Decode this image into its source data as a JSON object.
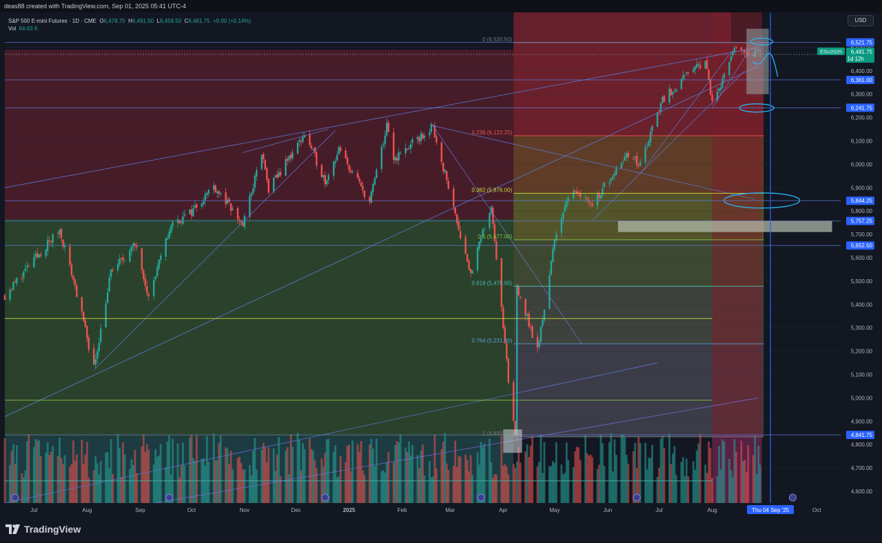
{
  "header": {
    "caption": "deas88 created with TradingView.com, Sep 01, 2025 05:41 UTC-4"
  },
  "legend": {
    "symbol": "S&P 500 E-mini Futures · 1D · CME",
    "open_label": "O",
    "open": "6,478.75",
    "high_label": "H",
    "high": "6,491.50",
    "low_label": "L",
    "low": "6,459.50",
    "close_label": "C",
    "close": "6,481.75",
    "change": "+9.00 (+0.14%)",
    "vol_label": "Vol",
    "vol": "64.63 K"
  },
  "currency_button": "USD",
  "brand": "TradingView",
  "colors": {
    "background": "#131722",
    "up": "#26a69a",
    "down": "#ef5350",
    "line": "#5b7bd6",
    "price_tag": "#2962ff",
    "annotation": "#29b6f6"
  },
  "chart_data": {
    "type": "candlestick",
    "title": "S&P 500 E-mini Futures",
    "interval": "1D",
    "exchange": "CME",
    "ylim": [
      4550,
      6650
    ],
    "y_ticks": [
      "6,600.00",
      "6,500.00",
      "6,400.00",
      "6,300.00",
      "6,200.00",
      "6,100.00",
      "6,000.00",
      "5,900.00",
      "5,800.00",
      "5,700.00",
      "5,600.00",
      "5,500.00",
      "5,400.00",
      "5,300.00",
      "5,200.00",
      "5,100.00",
      "5,000.00",
      "4,900.00",
      "4,800.00",
      "4,700.00",
      "4,600.00"
    ],
    "y_tick_values": [
      6600,
      6500,
      6400,
      6300,
      6200,
      6100,
      6000,
      5900,
      5800,
      5700,
      5600,
      5500,
      5400,
      5300,
      5200,
      5100,
      5000,
      4900,
      4800,
      4700,
      4600
    ],
    "x_ticks": [
      "Jul",
      "Aug",
      "Sep",
      "Oct",
      "Nov",
      "Dec",
      "2025",
      "Feb",
      "Mar",
      "Apr",
      "May",
      "Jun",
      "Jul",
      "Aug",
      "Sep",
      "Oct"
    ],
    "x_tick_dates": [
      "2024-07-01",
      "2024-08-01",
      "2024-09-01",
      "2024-10-01",
      "2024-11-01",
      "2024-12-01",
      "2025-01-01",
      "2025-02-01",
      "2025-03-01",
      "2025-04-01",
      "2025-05-01",
      "2025-06-01",
      "2025-07-01",
      "2025-08-01",
      "2025-09-01",
      "2025-10-01"
    ],
    "x_range": [
      "2024-06-14",
      "2025-10-15"
    ],
    "cursor_label": "Thu 04 Sep '25",
    "cursor_date": "2025-09-04",
    "price_levels": [
      {
        "value": 6521.75,
        "label": "6,521.75"
      },
      {
        "value": 6361.0,
        "label": "6,361.00"
      },
      {
        "value": 6241.75,
        "label": "6,241.75"
      },
      {
        "value": 5844.25,
        "label": "5,844.25"
      },
      {
        "value": 5757.25,
        "label": "5,757.25"
      },
      {
        "value": 5652.5,
        "label": "5,652.50"
      },
      {
        "value": 4841.75,
        "label": "4,841.75"
      }
    ],
    "last_price": {
      "symbol": "ESU2025",
      "value": 6481.75,
      "label": "6,481.75",
      "countdown": "1d 12h"
    },
    "fib_levels": [
      {
        "ratio_label": "0",
        "value": 6520.5,
        "text": "0 (6,520.50)"
      },
      {
        "ratio_label": "0.236",
        "value": 6122.25,
        "text": "0.236 (6,122.25)"
      },
      {
        "ratio_label": "0.382",
        "value": 5876.0,
        "text": "0.382 (5,876.00)"
      },
      {
        "ratio_label": "0.5",
        "value": 5677.0,
        "text": "0.5 (5,677.00)"
      },
      {
        "ratio_label": "0.618",
        "value": 5478.0,
        "text": "0.618 (5,478.00)"
      },
      {
        "ratio_label": "0.764",
        "value": 5231.5,
        "text": "0.764 (5,231.50)"
      },
      {
        "ratio_label": "1",
        "value": 4833.5,
        "text": "1 (4,833.50)"
      }
    ],
    "anchors": [
      {
        "date": "2024-06-14",
        "close": 5440
      },
      {
        "date": "2024-07-16",
        "close": 5720
      },
      {
        "date": "2024-07-25",
        "close": 5480
      },
      {
        "date": "2024-08-05",
        "close": 5130
      },
      {
        "date": "2024-08-15",
        "close": 5540
      },
      {
        "date": "2024-08-30",
        "close": 5660
      },
      {
        "date": "2024-09-06",
        "close": 5430
      },
      {
        "date": "2024-09-19",
        "close": 5740
      },
      {
        "date": "2024-09-30",
        "close": 5790
      },
      {
        "date": "2024-10-14",
        "close": 5910
      },
      {
        "date": "2024-10-31",
        "close": 5740
      },
      {
        "date": "2024-11-11",
        "close": 6050
      },
      {
        "date": "2024-11-15",
        "close": 5890
      },
      {
        "date": "2024-12-06",
        "close": 6130
      },
      {
        "date": "2024-12-18",
        "close": 5930
      },
      {
        "date": "2024-12-26",
        "close": 6060
      },
      {
        "date": "2025-01-13",
        "close": 5840
      },
      {
        "date": "2025-01-23",
        "close": 6160
      },
      {
        "date": "2025-01-27",
        "close": 6020
      },
      {
        "date": "2025-02-19",
        "close": 6160
      },
      {
        "date": "2025-03-13",
        "close": 5530
      },
      {
        "date": "2025-03-25",
        "close": 5830
      },
      {
        "date": "2025-04-04",
        "close": 5070
      },
      {
        "date": "2025-04-08",
        "close": 4840
      },
      {
        "date": "2025-04-09",
        "close": 5480
      },
      {
        "date": "2025-04-21",
        "close": 5200
      },
      {
        "date": "2025-05-02",
        "close": 5720
      },
      {
        "date": "2025-05-12",
        "close": 5900
      },
      {
        "date": "2025-05-23",
        "close": 5830
      },
      {
        "date": "2025-06-11",
        "close": 6040
      },
      {
        "date": "2025-06-20",
        "close": 6000
      },
      {
        "date": "2025-07-03",
        "close": 6280
      },
      {
        "date": "2025-07-28",
        "close": 6450
      },
      {
        "date": "2025-08-01",
        "close": 6260
      },
      {
        "date": "2025-08-14",
        "close": 6490
      },
      {
        "date": "2025-08-22",
        "close": 6480
      },
      {
        "date": "2025-08-29",
        "close": 6481.75
      }
    ]
  }
}
